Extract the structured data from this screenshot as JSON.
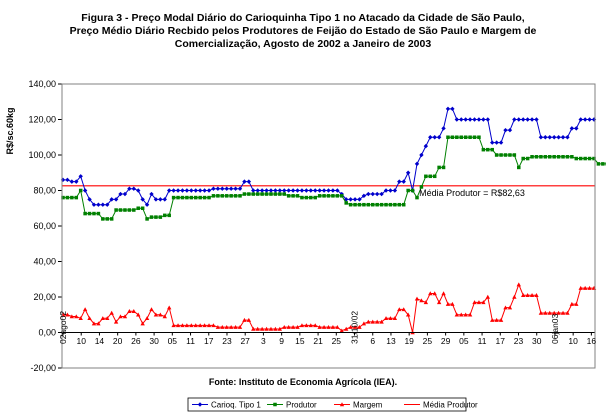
{
  "title_lines": [
    "Figura 3 - Preço  Modal Diário do Carioquinha Tipo 1 no Atacado da Cidade de São Paulo,",
    "Preço Médio Diário Recbido pelos Produtores de Feijão do Estado de São Paulo e Margem de",
    "Comercialização, Agosto de 2002  a Janeiro de 2003"
  ],
  "source": "Fonte: Instituto de Economia Agrícola (IEA).",
  "chart_data": {
    "type": "line",
    "ylabel": "R$/sc.60kg",
    "ylim": [
      -20,
      140
    ],
    "ytick_step": 20,
    "ytick_labels": [
      "-20,00",
      "0,00",
      "20,00",
      "40,00",
      "60,00",
      "80,00",
      "100,00",
      "120,00",
      "140,00"
    ],
    "grid": false,
    "legend_position": "bottom",
    "x_tick_labels": [
      "02ago02",
      "10",
      "14",
      "20",
      "26",
      "30",
      "05",
      "11",
      "17",
      "23",
      "27",
      "3",
      "9",
      "15",
      "21",
      "25",
      "31/10/02",
      "6",
      "13",
      "19",
      "25",
      "29",
      "05",
      "11",
      "17",
      "23",
      "30",
      "06jan03",
      "10",
      "16"
    ],
    "reference_line": {
      "name": "Média Produtor",
      "value": 82.63,
      "label": "Média  Produtor = R$82,63",
      "color": "#ff0000"
    },
    "series": [
      {
        "name": "Carioq. Tipo 1",
        "color": "#0000cc",
        "marker": "diamond",
        "values": [
          86,
          86,
          85,
          85,
          88,
          80,
          75,
          72,
          72,
          72,
          72,
          75,
          75,
          78,
          78,
          81,
          81,
          80,
          75,
          72,
          78,
          75,
          75,
          75,
          80,
          80,
          80,
          80,
          80,
          80,
          80,
          80,
          80,
          80,
          81,
          81,
          81,
          81,
          81,
          81,
          81,
          85,
          85,
          80,
          80,
          80,
          80,
          80,
          80,
          80,
          80,
          80,
          80,
          80,
          80,
          80,
          80,
          80,
          80,
          80,
          80,
          80,
          80,
          78,
          75,
          75,
          75,
          75,
          77,
          78,
          78,
          78,
          78,
          80,
          80,
          80,
          85,
          85,
          90,
          80,
          95,
          100,
          105,
          110,
          110,
          110,
          115,
          126,
          126,
          120,
          120,
          120,
          120,
          120,
          120,
          120,
          120,
          107,
          107,
          107,
          114,
          114,
          120,
          120,
          120,
          120,
          120,
          120,
          110,
          110,
          110,
          110,
          110,
          110,
          110,
          115,
          115,
          120,
          120,
          120,
          120
        ]
      },
      {
        "name": "Produtor",
        "color": "#008000",
        "marker": "square",
        "values": [
          76,
          76,
          76,
          76,
          80,
          67,
          67,
          67,
          67,
          64,
          64,
          64,
          69,
          69,
          69,
          69,
          69,
          70,
          70,
          64,
          65,
          65,
          65,
          66,
          66,
          76,
          76,
          76,
          76,
          76,
          76,
          76,
          76,
          76,
          77,
          77,
          77,
          77,
          77,
          77,
          77,
          78,
          78,
          78,
          78,
          78,
          78,
          78,
          78,
          78,
          78,
          77,
          77,
          77,
          76,
          76,
          76,
          76,
          77,
          77,
          77,
          77,
          77,
          77,
          73,
          72,
          72,
          72,
          72,
          72,
          72,
          72,
          72,
          72,
          72,
          72,
          72,
          72,
          80,
          80,
          76,
          82,
          88,
          88,
          88,
          93,
          93,
          110,
          110,
          110,
          110,
          110,
          110,
          110,
          110,
          103,
          103,
          103,
          100,
          100,
          100,
          100,
          100,
          93,
          98,
          98,
          99,
          99,
          99,
          99,
          99,
          99,
          99,
          99,
          99,
          99,
          98,
          98,
          98,
          98,
          98,
          95,
          95,
          95,
          95,
          95
        ]
      },
      {
        "name": "Margem",
        "color": "#ff0000",
        "marker": "triangle",
        "values": [
          10,
          10,
          9,
          9,
          8,
          13,
          8,
          5,
          5,
          8,
          8,
          11,
          6,
          9,
          9,
          12,
          12,
          10,
          5,
          8,
          13,
          10,
          10,
          9,
          14,
          4,
          4,
          4,
          4,
          4,
          4,
          4,
          4,
          4,
          4,
          3,
          3,
          3,
          3,
          3,
          3,
          7,
          7,
          2,
          2,
          2,
          2,
          2,
          2,
          2,
          3,
          3,
          3,
          3,
          4,
          4,
          4,
          4,
          3,
          3,
          3,
          3,
          3,
          1,
          2,
          3,
          3,
          3,
          5,
          6,
          6,
          6,
          6,
          8,
          8,
          8,
          13,
          13,
          10,
          0,
          19,
          18,
          17,
          22,
          22,
          17,
          22,
          16,
          16,
          10,
          10,
          10,
          10,
          17,
          17,
          17,
          20,
          7,
          7,
          7,
          14,
          14,
          20,
          27,
          21,
          21,
          21,
          21,
          11,
          11,
          11,
          11,
          11,
          11,
          11,
          16,
          16,
          25,
          25,
          25,
          25
        ]
      },
      {
        "name": "Média Produtor",
        "color": "#ff0000",
        "marker": "none",
        "values": []
      }
    ]
  }
}
